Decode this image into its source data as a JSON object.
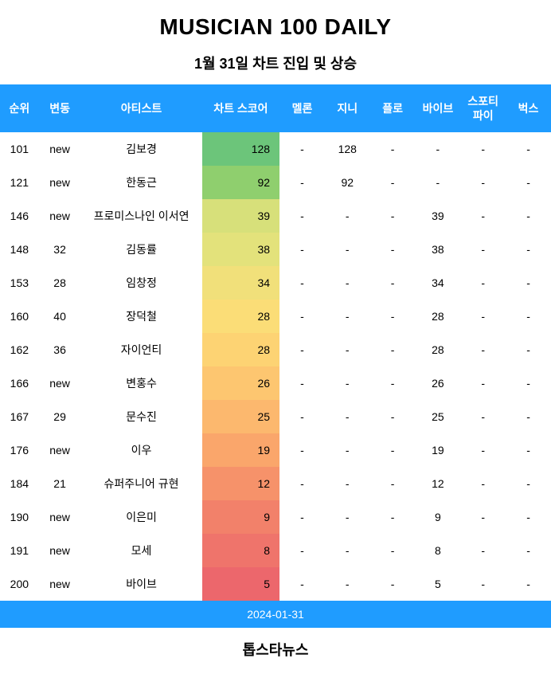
{
  "title": "MUSICIAN 100 DAILY",
  "subtitle": "1월 31일 차트 진입 및 상승",
  "header_bg": "#1f9cff",
  "header_color": "#ffffff",
  "title_fontsize": 28,
  "subtitle_fontsize": 18,
  "columns": [
    "순위",
    "변동",
    "아티스트",
    "차트 스코어",
    "멜론",
    "지니",
    "플로",
    "바이브",
    "스포티\n파이",
    "벅스"
  ],
  "rows": [
    {
      "rank": "101",
      "change": "new",
      "artist": "김보경",
      "score": "128",
      "score_bg": "#6cc57a",
      "melon": "-",
      "genie": "128",
      "flo": "-",
      "vibe": "-",
      "spotify": "-",
      "bugs": "-"
    },
    {
      "rank": "121",
      "change": "new",
      "artist": "한동근",
      "score": "92",
      "score_bg": "#8fcf6e",
      "melon": "-",
      "genie": "92",
      "flo": "-",
      "vibe": "-",
      "spotify": "-",
      "bugs": "-"
    },
    {
      "rank": "146",
      "change": "new",
      "artist": "프로미스나인 이서연",
      "score": "39",
      "score_bg": "#d7e07a",
      "melon": "-",
      "genie": "-",
      "flo": "-",
      "vibe": "39",
      "spotify": "-",
      "bugs": "-"
    },
    {
      "rank": "148",
      "change": "32",
      "artist": "김동률",
      "score": "38",
      "score_bg": "#e3e27b",
      "melon": "-",
      "genie": "-",
      "flo": "-",
      "vibe": "38",
      "spotify": "-",
      "bugs": "-"
    },
    {
      "rank": "153",
      "change": "28",
      "artist": "임창정",
      "score": "34",
      "score_bg": "#f1e07a",
      "melon": "-",
      "genie": "-",
      "flo": "-",
      "vibe": "34",
      "spotify": "-",
      "bugs": "-"
    },
    {
      "rank": "160",
      "change": "40",
      "artist": "장덕철",
      "score": "28",
      "score_bg": "#fbdd77",
      "melon": "-",
      "genie": "-",
      "flo": "-",
      "vibe": "28",
      "spotify": "-",
      "bugs": "-"
    },
    {
      "rank": "162",
      "change": "36",
      "artist": "자이언티",
      "score": "28",
      "score_bg": "#fdd373",
      "melon": "-",
      "genie": "-",
      "flo": "-",
      "vibe": "28",
      "spotify": "-",
      "bugs": "-"
    },
    {
      "rank": "166",
      "change": "new",
      "artist": "변홍수",
      "score": "26",
      "score_bg": "#fdc670",
      "melon": "-",
      "genie": "-",
      "flo": "-",
      "vibe": "26",
      "spotify": "-",
      "bugs": "-"
    },
    {
      "rank": "167",
      "change": "29",
      "artist": "문수진",
      "score": "25",
      "score_bg": "#fcb86e",
      "melon": "-",
      "genie": "-",
      "flo": "-",
      "vibe": "25",
      "spotify": "-",
      "bugs": "-"
    },
    {
      "rank": "176",
      "change": "new",
      "artist": "이우",
      "score": "19",
      "score_bg": "#faa66b",
      "melon": "-",
      "genie": "-",
      "flo": "-",
      "vibe": "19",
      "spotify": "-",
      "bugs": "-"
    },
    {
      "rank": "184",
      "change": "21",
      "artist": "슈퍼주니어 규현",
      "score": "12",
      "score_bg": "#f6926a",
      "melon": "-",
      "genie": "-",
      "flo": "-",
      "vibe": "12",
      "spotify": "-",
      "bugs": "-"
    },
    {
      "rank": "190",
      "change": "new",
      "artist": "이은미",
      "score": "9",
      "score_bg": "#f2816a",
      "melon": "-",
      "genie": "-",
      "flo": "-",
      "vibe": "9",
      "spotify": "-",
      "bugs": "-"
    },
    {
      "rank": "191",
      "change": "new",
      "artist": "모세",
      "score": "8",
      "score_bg": "#ef746b",
      "melon": "-",
      "genie": "-",
      "flo": "-",
      "vibe": "8",
      "spotify": "-",
      "bugs": "-"
    },
    {
      "rank": "200",
      "change": "new",
      "artist": "바이브",
      "score": "5",
      "score_bg": "#ec676c",
      "melon": "-",
      "genie": "-",
      "flo": "-",
      "vibe": "5",
      "spotify": "-",
      "bugs": "-"
    }
  ],
  "date_text": "2024-01-31",
  "date_bg": "#1f9cff",
  "footer": "톱스타뉴스"
}
